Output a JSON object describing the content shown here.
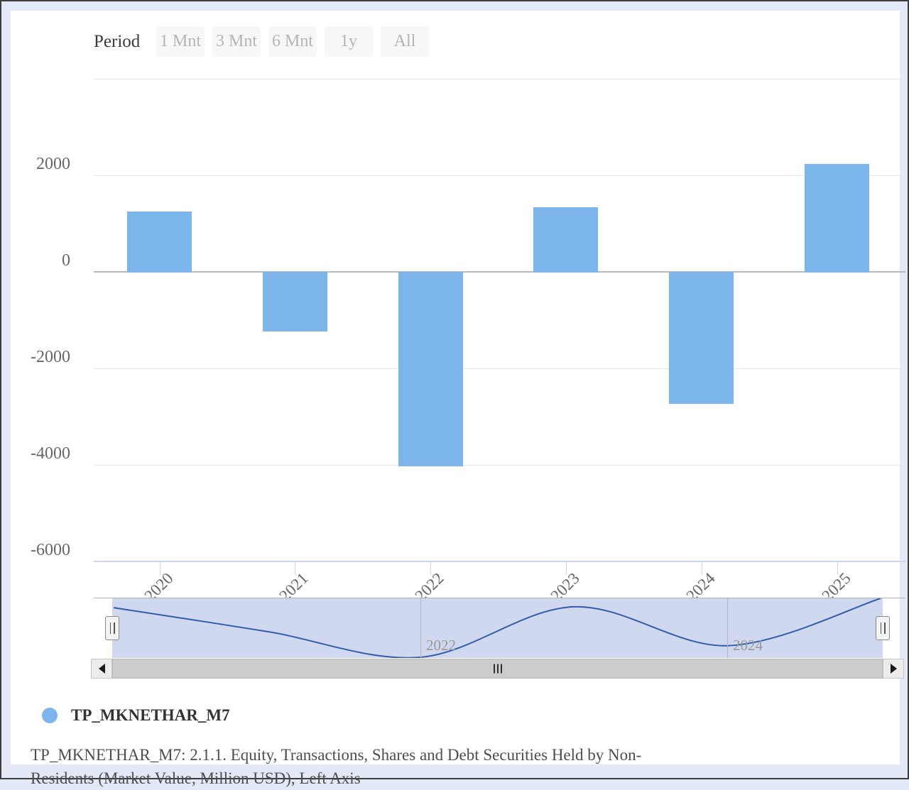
{
  "period": {
    "label": "Period",
    "buttons": [
      {
        "label": "1 Mnt"
      },
      {
        "label": "3 Mnt"
      },
      {
        "label": "6 Mnt"
      },
      {
        "label": "1y"
      },
      {
        "label": "All"
      }
    ]
  },
  "chart_data": {
    "type": "bar",
    "title": "",
    "categories": [
      "2020",
      "2021",
      "2022",
      "2023",
      "2024",
      "2025"
    ],
    "series": [
      {
        "name": "TP_MKNETHAR_M7",
        "values": [
          1270,
          -1240,
          -4030,
          1360,
          -2740,
          2250
        ]
      }
    ],
    "xlabel": "",
    "ylabel": "",
    "ylim": [
      -6000,
      4000
    ],
    "ytick_interval": 2000,
    "ytick_labels": [
      {
        "value": 2000,
        "label": "2000"
      },
      {
        "value": 0,
        "label": "0"
      },
      {
        "value": -2000,
        "label": "-2000"
      },
      {
        "value": -4000,
        "label": "-4000"
      },
      {
        "value": -6000,
        "label": "-6000"
      }
    ],
    "gridline_values": [
      4000,
      2000,
      0,
      -2000,
      -4000
    ],
    "grid": true,
    "legend_position": "bottom-left",
    "bar_color": "#7cb5ec"
  },
  "navigator": {
    "band_labels": [
      {
        "label": "2022"
      },
      {
        "label": "2024"
      }
    ],
    "line_color": "#335cad",
    "mask_color": "#cfd8ee"
  },
  "scrollbar": {
    "left_arrow": "left",
    "right_arrow": "right"
  },
  "legend": {
    "name": "TP_MKNETHAR_M7",
    "marker_color": "#7cb5ec"
  },
  "footnote": "TP_MKNETHAR_M7: 2.1.1. Equity, Transactions, Shares and Debt Securities Held by Non-Residents (Market Value, Million USD), Left Axis"
}
